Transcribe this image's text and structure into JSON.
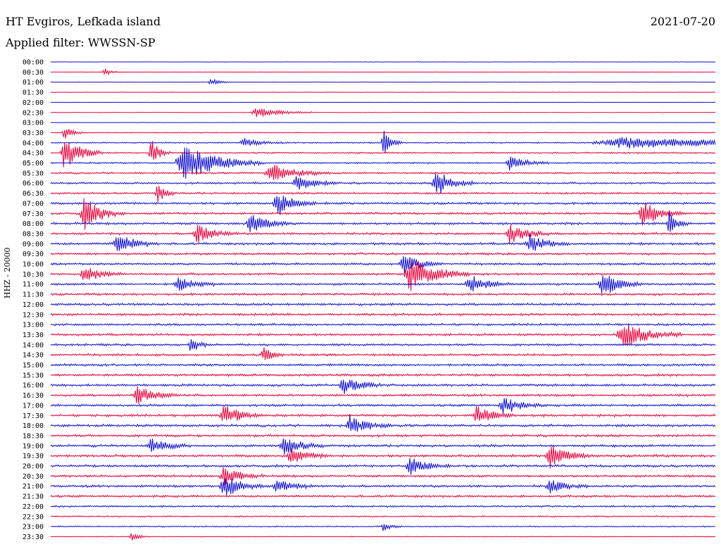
{
  "header": {
    "station": "HT Evgiros, Lefkada island",
    "date": "2021-07-20",
    "filter": "Applied filter: WWSSN-SP"
  },
  "axis": {
    "side_label": "HHZ - 20000"
  },
  "colors": {
    "trace_a": "#1010d0",
    "trace_b": "#e8003c"
  },
  "chart_data": {
    "type": "line",
    "title": "HT Evgiros, Lefkada island",
    "subtitle": "Applied filter: WWSSN-SP",
    "ylabel": "HHZ - 20000",
    "time_labels": [
      "00:00",
      "00:30",
      "01:00",
      "01:30",
      "02:00",
      "02:30",
      "03:00",
      "03:30",
      "04:00",
      "04:30",
      "05:00",
      "05:30",
      "06:00",
      "06:30",
      "07:00",
      "07:30",
      "08:00",
      "08:30",
      "09:00",
      "09:30",
      "10:00",
      "10:30",
      "11:00",
      "11:30",
      "12:00",
      "12:30",
      "13:00",
      "13:30",
      "14:00",
      "14:30",
      "15:00",
      "15:30",
      "16:00",
      "16:30",
      "17:00",
      "17:30",
      "18:00",
      "18:30",
      "19:00",
      "19:30",
      "20:00",
      "20:30",
      "21:00",
      "21:30",
      "22:00",
      "22:30",
      "23:00",
      "23:30"
    ],
    "line_colors": [
      "blue",
      "red",
      "blue",
      "red",
      "blue",
      "red",
      "blue",
      "red",
      "blue",
      "red",
      "blue",
      "red",
      "blue",
      "red",
      "blue",
      "red",
      "blue",
      "red",
      "blue",
      "red",
      "blue",
      "red",
      "blue",
      "red",
      "blue",
      "red",
      "blue",
      "red",
      "blue",
      "red",
      "blue",
      "red",
      "blue",
      "red",
      "blue",
      "red",
      "blue",
      "red",
      "blue",
      "red",
      "blue",
      "red",
      "blue",
      "red",
      "blue",
      "red",
      "blue",
      "red"
    ],
    "noise": [
      0.3,
      0.2,
      0.3,
      0.3,
      0.3,
      0.3,
      0.3,
      0.6,
      0.9,
      1.0,
      1.0,
      1.2,
      1.3,
      1.3,
      1.5,
      1.5,
      1.6,
      1.5,
      1.6,
      1.5,
      1.5,
      1.5,
      1.5,
      1.5,
      1.6,
      1.6,
      1.5,
      1.5,
      1.5,
      1.5,
      1.6,
      1.6,
      1.6,
      1.6,
      1.6,
      1.6,
      1.7,
      1.6,
      1.7,
      1.7,
      1.6,
      1.6,
      1.6,
      1.5,
      1.2,
      1.0,
      0.8,
      0.6
    ],
    "events": [
      {
        "line": 1,
        "t": 0.08,
        "amp": 6,
        "dur": 0.01
      },
      {
        "line": 2,
        "t": 0.24,
        "amp": 6,
        "dur": 0.01
      },
      {
        "line": 5,
        "t": 0.31,
        "amp": 8,
        "dur": 0.03
      },
      {
        "line": 7,
        "t": 0.02,
        "amp": 10,
        "dur": 0.01
      },
      {
        "line": 8,
        "t": 0.29,
        "amp": 6,
        "dur": 0.02
      },
      {
        "line": 8,
        "t": 0.5,
        "amp": 20,
        "dur": 0.01
      },
      {
        "line": 8,
        "t": 0.86,
        "amp": 8,
        "dur": 0.15
      },
      {
        "line": 9,
        "t": 0.02,
        "amp": 24,
        "dur": 0.02
      },
      {
        "line": 9,
        "t": 0.15,
        "amp": 22,
        "dur": 0.01
      },
      {
        "line": 10,
        "t": 0.2,
        "amp": 28,
        "dur": 0.04
      },
      {
        "line": 10,
        "t": 0.69,
        "amp": 10,
        "dur": 0.02
      },
      {
        "line": 11,
        "t": 0.33,
        "amp": 14,
        "dur": 0.03
      },
      {
        "line": 12,
        "t": 0.37,
        "amp": 14,
        "dur": 0.02
      },
      {
        "line": 12,
        "t": 0.58,
        "amp": 20,
        "dur": 0.02
      },
      {
        "line": 13,
        "t": 0.16,
        "amp": 14,
        "dur": 0.01
      },
      {
        "line": 14,
        "t": 0.34,
        "amp": 18,
        "dur": 0.02
      },
      {
        "line": 15,
        "t": 0.05,
        "amp": 24,
        "dur": 0.02
      },
      {
        "line": 15,
        "t": 0.89,
        "amp": 20,
        "dur": 0.02
      },
      {
        "line": 16,
        "t": 0.3,
        "amp": 16,
        "dur": 0.02
      },
      {
        "line": 16,
        "t": 0.93,
        "amp": 18,
        "dur": 0.01
      },
      {
        "line": 17,
        "t": 0.22,
        "amp": 14,
        "dur": 0.02
      },
      {
        "line": 17,
        "t": 0.69,
        "amp": 16,
        "dur": 0.02
      },
      {
        "line": 18,
        "t": 0.1,
        "amp": 16,
        "dur": 0.02
      },
      {
        "line": 18,
        "t": 0.72,
        "amp": 14,
        "dur": 0.02
      },
      {
        "line": 20,
        "t": 0.53,
        "amp": 14,
        "dur": 0.02
      },
      {
        "line": 21,
        "t": 0.05,
        "amp": 12,
        "dur": 0.02
      },
      {
        "line": 21,
        "t": 0.54,
        "amp": 26,
        "dur": 0.03
      },
      {
        "line": 22,
        "t": 0.19,
        "amp": 12,
        "dur": 0.02
      },
      {
        "line": 22,
        "t": 0.63,
        "amp": 14,
        "dur": 0.02
      },
      {
        "line": 22,
        "t": 0.83,
        "amp": 18,
        "dur": 0.02
      },
      {
        "line": 27,
        "t": 0.86,
        "amp": 20,
        "dur": 0.03
      },
      {
        "line": 28,
        "t": 0.21,
        "amp": 14,
        "dur": 0.01
      },
      {
        "line": 29,
        "t": 0.32,
        "amp": 14,
        "dur": 0.01
      },
      {
        "line": 32,
        "t": 0.44,
        "amp": 14,
        "dur": 0.02
      },
      {
        "line": 33,
        "t": 0.13,
        "amp": 14,
        "dur": 0.02
      },
      {
        "line": 34,
        "t": 0.68,
        "amp": 14,
        "dur": 0.02
      },
      {
        "line": 35,
        "t": 0.26,
        "amp": 16,
        "dur": 0.02
      },
      {
        "line": 35,
        "t": 0.64,
        "amp": 14,
        "dur": 0.02
      },
      {
        "line": 36,
        "t": 0.45,
        "amp": 14,
        "dur": 0.02
      },
      {
        "line": 38,
        "t": 0.15,
        "amp": 12,
        "dur": 0.02
      },
      {
        "line": 38,
        "t": 0.35,
        "amp": 16,
        "dur": 0.02
      },
      {
        "line": 39,
        "t": 0.36,
        "amp": 12,
        "dur": 0.02
      },
      {
        "line": 39,
        "t": 0.75,
        "amp": 20,
        "dur": 0.02
      },
      {
        "line": 40,
        "t": 0.54,
        "amp": 14,
        "dur": 0.02
      },
      {
        "line": 41,
        "t": 0.26,
        "amp": 14,
        "dur": 0.02
      },
      {
        "line": 42,
        "t": 0.26,
        "amp": 20,
        "dur": 0.02
      },
      {
        "line": 42,
        "t": 0.34,
        "amp": 10,
        "dur": 0.02
      },
      {
        "line": 42,
        "t": 0.75,
        "amp": 10,
        "dur": 0.02
      },
      {
        "line": 46,
        "t": 0.5,
        "amp": 6,
        "dur": 0.01
      },
      {
        "line": 47,
        "t": 0.12,
        "amp": 6,
        "dur": 0.01
      }
    ]
  }
}
